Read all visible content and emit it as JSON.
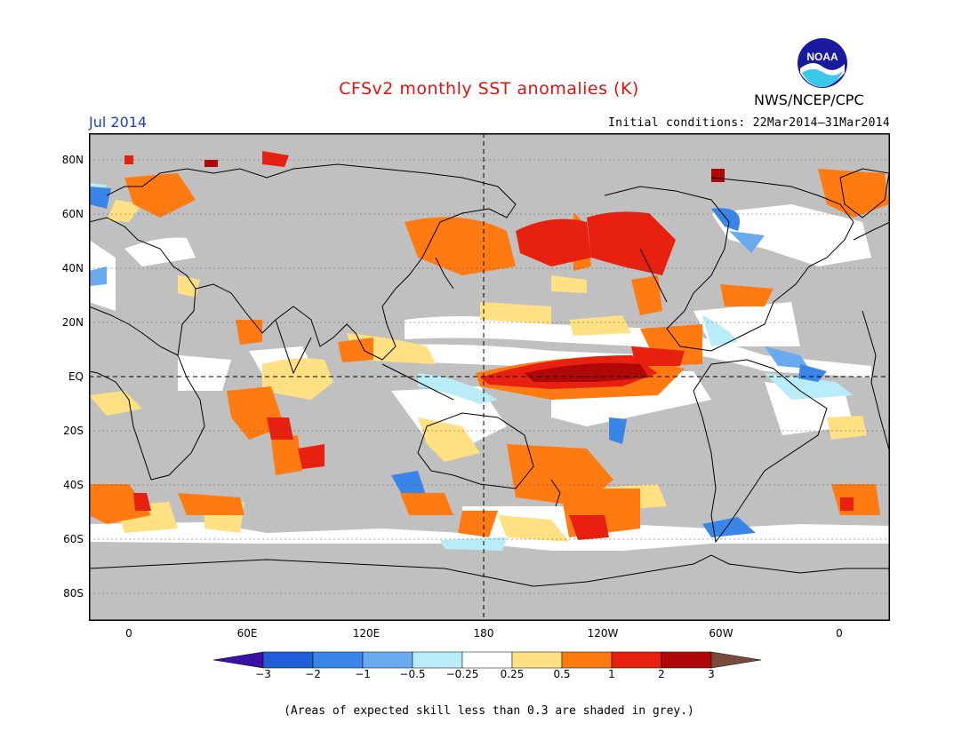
{
  "header": {
    "title": "CFSv2 monthly SST anomalies (K)",
    "month": "Jul 2014",
    "initial_conditions": "Initial conditions: 22Mar2014–31Mar2014",
    "agency": "NWS/NCEP/CPC",
    "logo_text": "NOAA"
  },
  "map": {
    "lat_labels": [
      "80N",
      "60N",
      "40N",
      "20N",
      "EQ",
      "20S",
      "40S",
      "60S",
      "80S"
    ],
    "lon_labels": [
      "0",
      "60E",
      "120E",
      "180",
      "120W",
      "60W",
      "0"
    ],
    "background_color": "#c0c0c0"
  },
  "colorbar": {
    "labels": [
      "−3",
      "−2",
      "−1",
      "−0.5",
      "−0.25",
      "0.25",
      "0.5",
      "1",
      "2",
      "3"
    ],
    "colors": [
      "#3a10a8",
      "#1f5ed8",
      "#3a86e8",
      "#6aaaf0",
      "#b8ecf8",
      "#ffffff",
      "#ffe082",
      "#ff7a10",
      "#e82010",
      "#b00808",
      "#7a4a3a"
    ]
  },
  "footnote": "(Areas of expected skill less than 0.3 are shaded in grey.)"
}
